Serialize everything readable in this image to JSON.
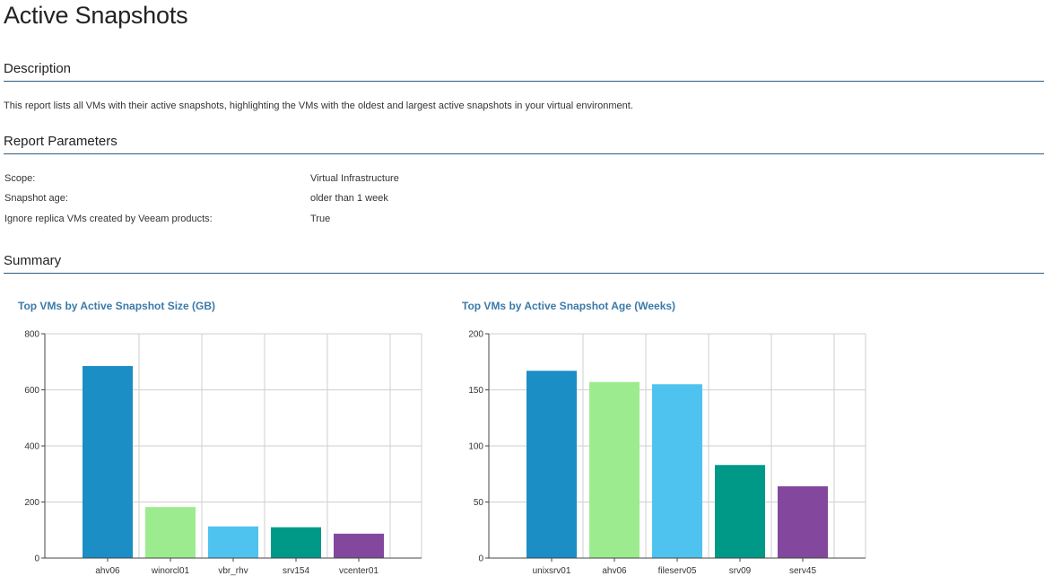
{
  "page": {
    "title": "Active Snapshots"
  },
  "description": {
    "header": "Description",
    "text": "This report lists all VMs with their active snapshots, highlighting the VMs with the oldest and largest active snapshots in your virtual environment."
  },
  "parameters": {
    "header": "Report Parameters",
    "rows": [
      {
        "label": "Scope:",
        "value": "Virtual Infrastructure"
      },
      {
        "label": "Snapshot age:",
        "value": "older than 1 week"
      },
      {
        "label": "Ignore replica VMs created by Veeam products:",
        "value": "True"
      }
    ]
  },
  "summary": {
    "header": "Summary"
  },
  "colors": {
    "header_rule": "#2e5e82",
    "chart_title": "#3c7aa8",
    "bar_1": "#1b8ec5",
    "bar_2": "#9deb8f",
    "bar_3": "#4fc3ef",
    "bar_4": "#009988",
    "bar_5": "#83489d"
  },
  "chart_data": [
    {
      "type": "bar",
      "title": "Top VMs by Active Snapshot Size (GB)",
      "categories": [
        "ahv06",
        "winorcl01",
        "vbr_rhv",
        "srv154",
        "vcenter01"
      ],
      "values": [
        685,
        182,
        113,
        110,
        87
      ],
      "colors": [
        "#1b8ec5",
        "#9deb8f",
        "#4fc3ef",
        "#009988",
        "#83489d"
      ],
      "ylim": [
        0,
        800
      ],
      "yticks": [
        0,
        200,
        400,
        600,
        800
      ],
      "grid": true,
      "xlabel": "",
      "ylabel": ""
    },
    {
      "type": "bar",
      "title": "Top VMs by Active Snapshot Age (Weeks)",
      "categories": [
        "unixsrv01",
        "ahv06",
        "fileserv05",
        "srv09",
        "serv45"
      ],
      "values": [
        167,
        157,
        155,
        83,
        64
      ],
      "colors": [
        "#1b8ec5",
        "#9deb8f",
        "#4fc3ef",
        "#009988",
        "#83489d"
      ],
      "ylim": [
        0,
        200
      ],
      "yticks": [
        0,
        50,
        100,
        150,
        200
      ],
      "grid": true,
      "xlabel": "",
      "ylabel": ""
    }
  ]
}
